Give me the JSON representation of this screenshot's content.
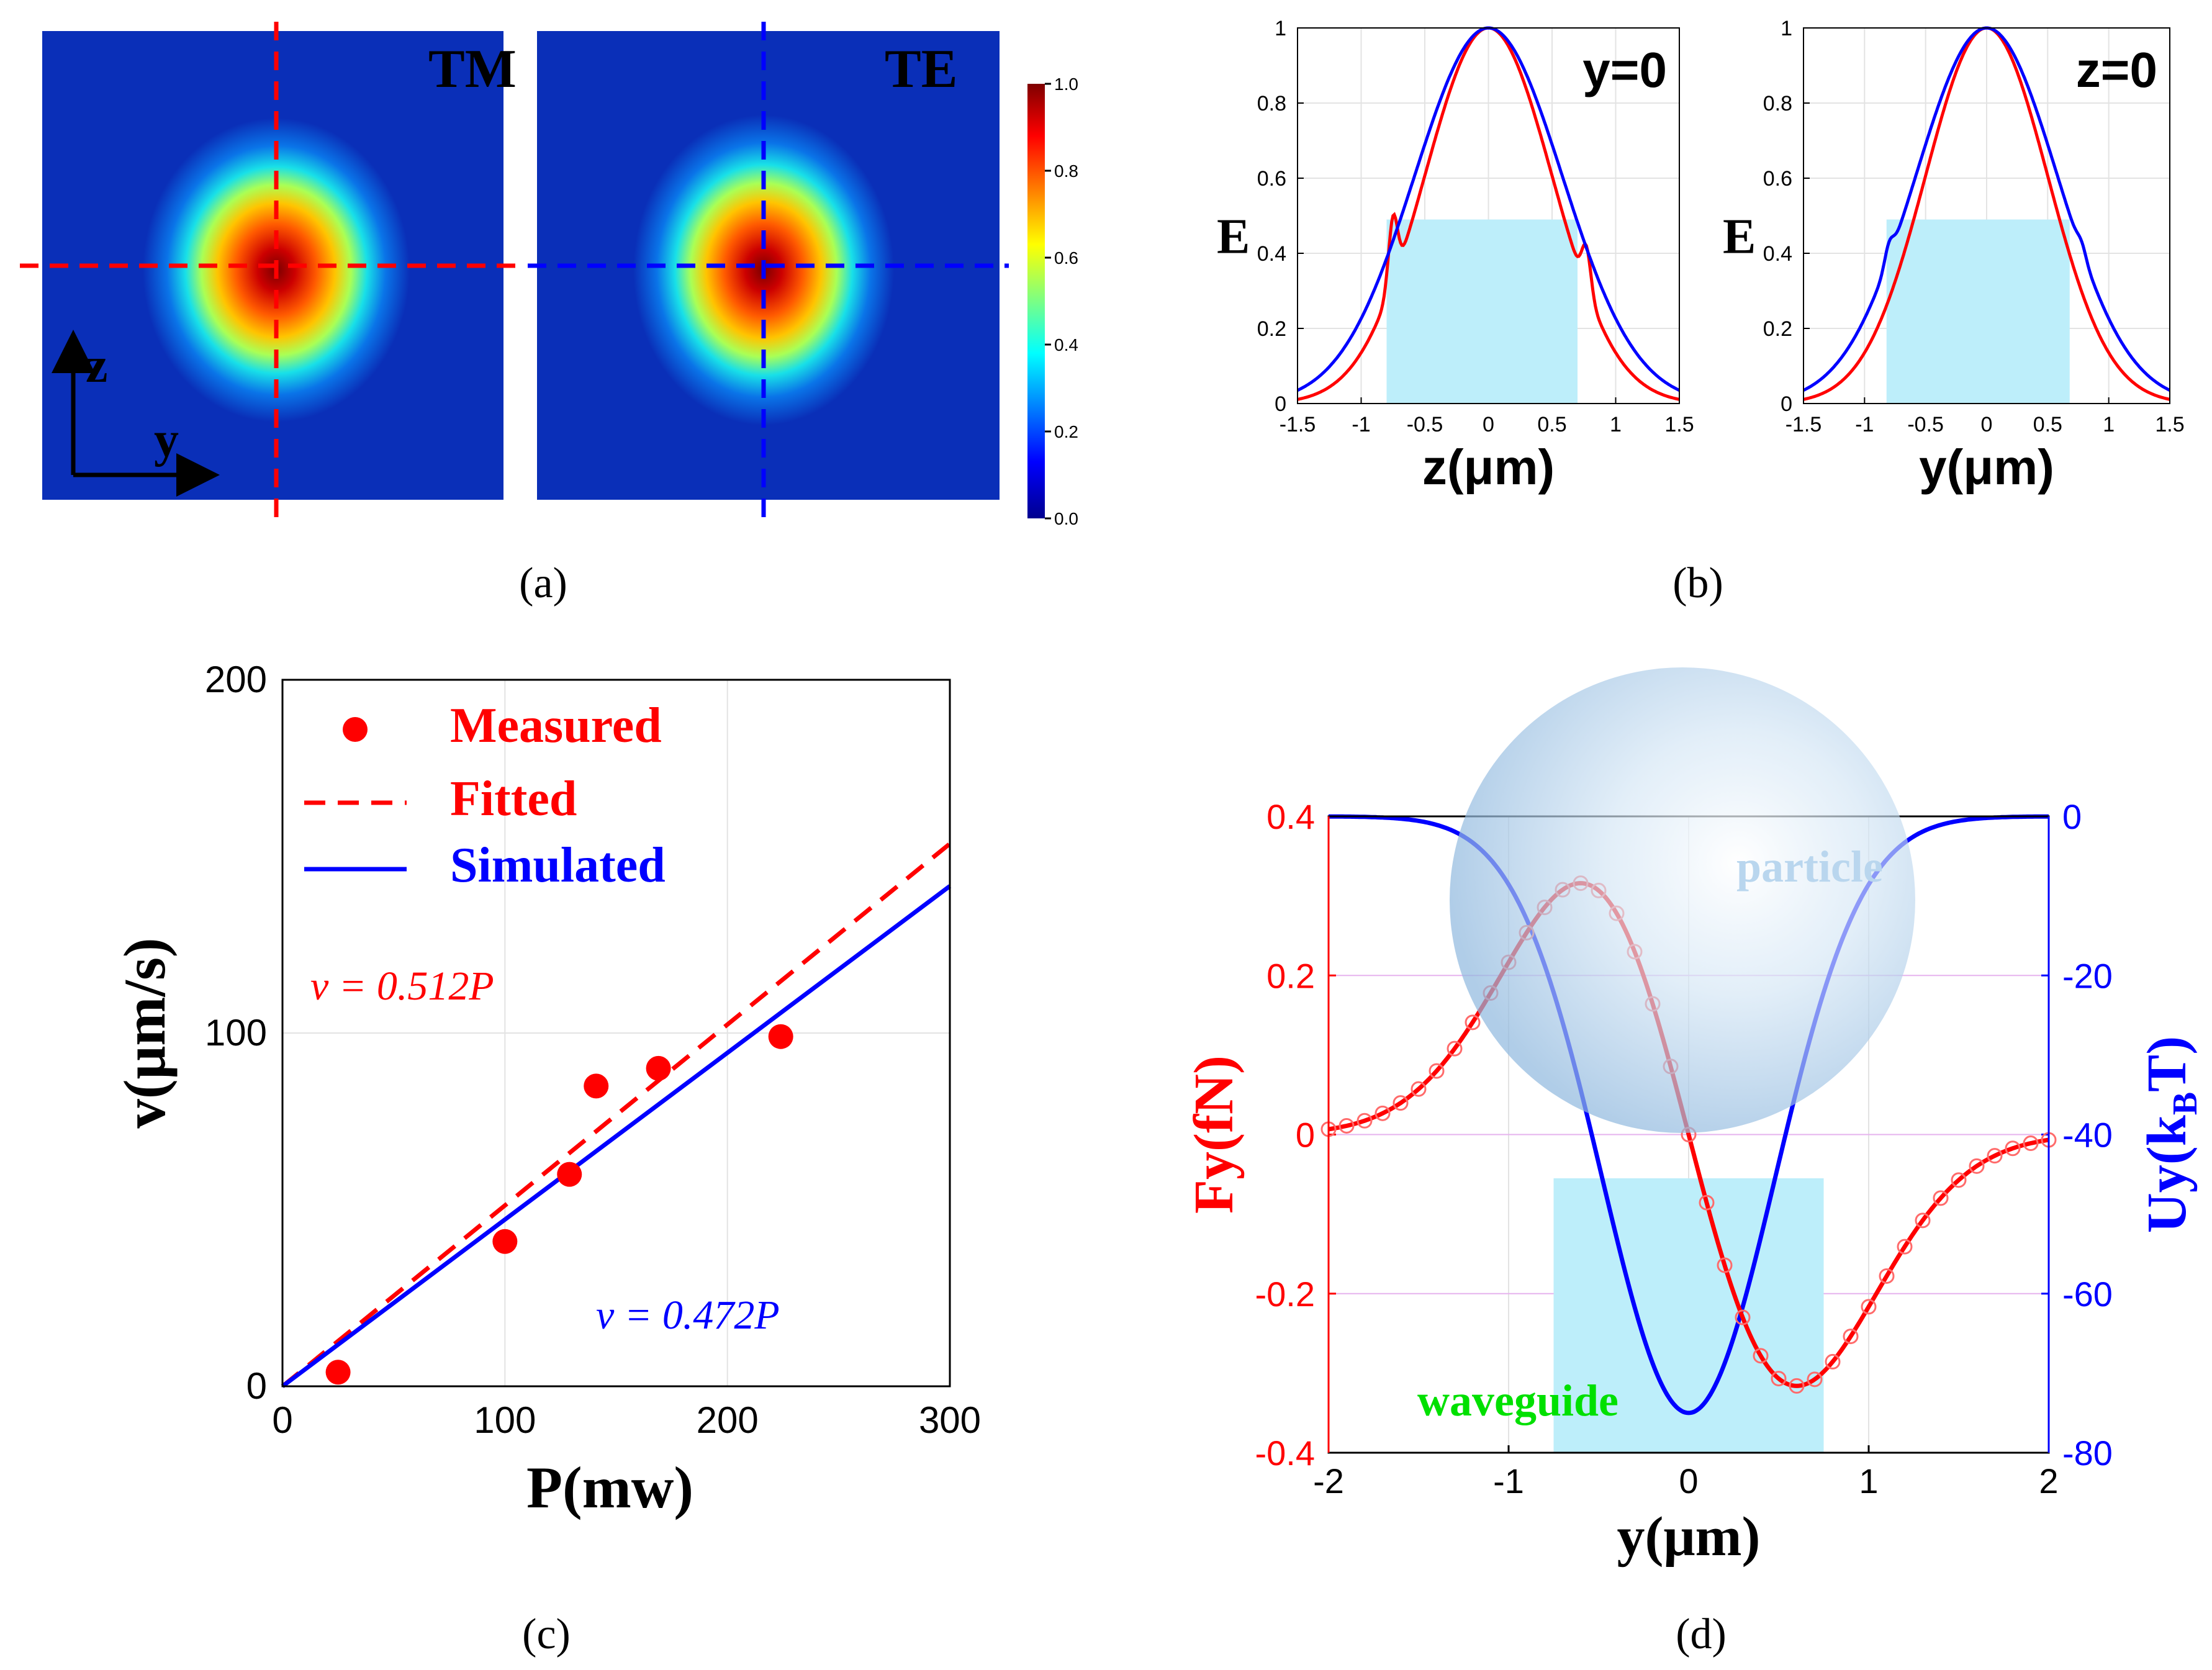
{
  "colors": {
    "red": "#ff0000",
    "blue": "#0000ff",
    "cyan": "#bdeefa",
    "green": "#00e000",
    "grid": "#e3e3e3",
    "magenta_grid": "#e6b3ee",
    "particle": "#c6dcef"
  },
  "chart_data": [
    {
      "type": "heatmap",
      "panel": "(a)",
      "maps": [
        {
          "title": "TM",
          "line_color": "#ff0000"
        },
        {
          "title": "TE",
          "line_color": "#0000ff"
        }
      ],
      "axis_labels": {
        "vertical": "z",
        "horizontal": "y"
      },
      "colorbar": {
        "ticks": [
          "1.0",
          "0.8",
          "0.6",
          "0.4",
          "0.2",
          "0.0"
        ],
        "range": [
          0,
          1
        ]
      }
    },
    {
      "type": "line",
      "panel": "(b)",
      "plots": [
        {
          "annotation": "y=0",
          "xlabel": "z(μm)",
          "ylabel": "E",
          "xlim": [
            -1.5,
            1.5
          ],
          "ylim": [
            0,
            1
          ],
          "xticks": [
            "-1.5",
            "-1",
            "-0.5",
            "0",
            "0.5",
            "1",
            "1.5"
          ],
          "yticks": [
            "0",
            "0.2",
            "0.4",
            "0.6",
            "0.8",
            "1"
          ],
          "shaded_region": {
            "x": [
              -0.8,
              0.7
            ],
            "y": [
              0,
              0.49
            ]
          },
          "series": [
            {
              "name": "red",
              "color": "#ff0000",
              "peak": 1.0,
              "sigma": 0.5,
              "bump_left": [
                -0.75,
                0.5
              ],
              "bump_right": [
                0.77,
                0.42
              ]
            },
            {
              "name": "blue",
              "color": "#0000ff",
              "peak": 1.0,
              "sigma": 0.58,
              "bump_left": null,
              "bump_right": null
            }
          ]
        },
        {
          "annotation": "z=0",
          "xlabel": "y(μm)",
          "ylabel": "E",
          "xlim": [
            -1.5,
            1.5
          ],
          "ylim": [
            0,
            1
          ],
          "xticks": [
            "-1.5",
            "-1",
            "-0.5",
            "0",
            "0.5",
            "1",
            "1.5"
          ],
          "yticks": [
            "0",
            "0.2",
            "0.4",
            "0.6",
            "0.8",
            "1"
          ],
          "shaded_region": {
            "x": [
              -0.82,
              0.68
            ],
            "y": [
              0,
              0.49
            ]
          },
          "series": [
            {
              "name": "red",
              "color": "#ff0000",
              "peak": 1.0,
              "sigma": 0.5,
              "bump_left": null,
              "bump_right": null
            },
            {
              "name": "blue",
              "color": "#0000ff",
              "peak": 1.0,
              "sigma": 0.58,
              "bump_left": [
                -0.8,
                0.43
              ],
              "bump_right": [
                0.78,
                0.43
              ]
            }
          ]
        }
      ]
    },
    {
      "type": "scatter",
      "panel": "(c)",
      "xlabel": "P(mw)",
      "ylabel": "v(μm/s)",
      "xlim": [
        0,
        300
      ],
      "ylim": [
        0,
        200
      ],
      "xticks": [
        "0",
        "100",
        "200",
        "300"
      ],
      "yticks": [
        "0",
        "100",
        "200"
      ],
      "legend": [
        "Measured",
        "Fitted",
        "Simulated"
      ],
      "equations": {
        "fitted": "v = 0.512P",
        "simulated": "v = 0.472P"
      },
      "measured": {
        "x": [
          25,
          100,
          129,
          141,
          169,
          224
        ],
        "y": [
          4,
          41,
          60,
          85,
          90,
          99
        ]
      },
      "fitted_slope": 0.512,
      "simulated_slope": 0.472
    },
    {
      "type": "line",
      "panel": "(d)",
      "xlabel": "y(μm)",
      "ylabel_left": "Fy(fN)",
      "ylabel_right": "Uy(k",
      "ylabel_right_sub": "B",
      "ylabel_right_tail": "T)",
      "xlim": [
        -2,
        2
      ],
      "ylim_left": [
        -0.4,
        0.4
      ],
      "ylim_right": [
        -80,
        0
      ],
      "xticks": [
        "-2",
        "-1",
        "0",
        "1",
        "2"
      ],
      "yticks_left": [
        "-0.4",
        "-0.2",
        "0",
        "0.2",
        "0.4"
      ],
      "yticks_right": [
        "-80",
        "-60",
        "-40",
        "-20",
        "0"
      ],
      "annotations": {
        "particle": "particle",
        "waveguide": "waveguide"
      },
      "shaded_region": {
        "x": [
          -0.75,
          0.75
        ],
        "y_left": [
          -0.4,
          -0.055
        ]
      },
      "force_amplitude": 0.316,
      "force_peak_position": 0.6,
      "potential_depth": -75,
      "potential_sigma": 0.48
    }
  ],
  "panel_labels": [
    "(a)",
    "(b)",
    "(c)",
    "(d)"
  ]
}
